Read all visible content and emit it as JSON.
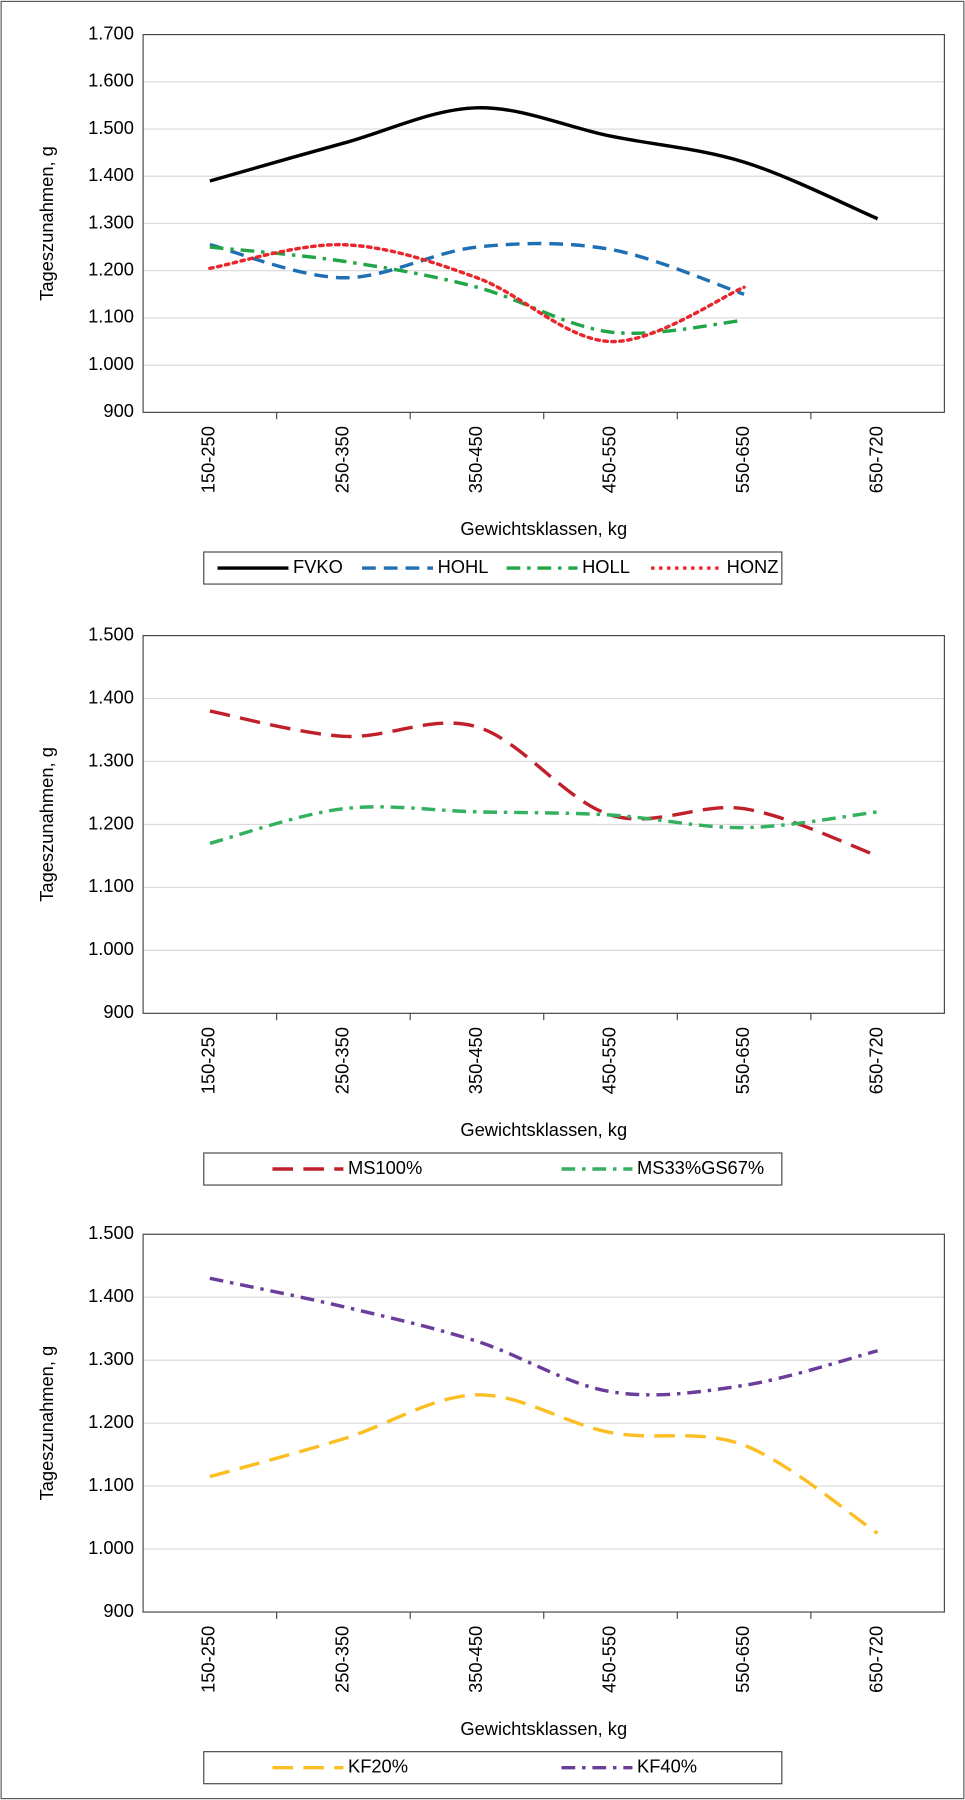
{
  "chart_data": [
    {
      "type": "line",
      "y_label": "Tageszunahmen, g",
      "x_label": "Gewichtsklassen, kg",
      "categories": [
        "150-250",
        "250-350",
        "350-450",
        "450-550",
        "550-650",
        "650-720"
      ],
      "ylim": [
        900,
        1700
      ],
      "yticks": [
        900,
        {
          "value": 1000,
          "label": "1.000"
        },
        {
          "value": 1100,
          "label": "1.100"
        },
        {
          "value": 1200,
          "label": "1.200"
        },
        {
          "value": 1300,
          "label": "1.300"
        },
        {
          "value": 1400,
          "label": "1.400"
        },
        {
          "value": 1500,
          "label": "1.500"
        },
        {
          "value": 1600,
          "label": "1.600"
        },
        {
          "value": 1700,
          "label": "1.700"
        }
      ],
      "grid": true,
      "series": [
        {
          "name": "FVKO",
          "color": "#000000",
          "style": "solid",
          "values": [
            1390,
            1470,
            1545,
            1485,
            1430,
            1310
          ]
        },
        {
          "name": "HOHL",
          "color": "#1f6fb5",
          "style": "dashed",
          "values": [
            1255,
            1185,
            1250,
            1245,
            1150,
            null
          ]
        },
        {
          "name": "HOLL",
          "color": "#22a546",
          "style": "dashdot",
          "values": [
            1250,
            1220,
            1165,
            1070,
            1095,
            null
          ]
        },
        {
          "name": "HONZ",
          "color": "#e8262b",
          "style": "dotted",
          "values": [
            1205,
            1255,
            1185,
            1050,
            1165,
            null
          ]
        }
      ]
    },
    {
      "type": "line",
      "y_label": "Tageszunahmen, g",
      "x_label": "Gewichtsklassen, kg",
      "categories": [
        "150-250",
        "250-350",
        "350-450",
        "450-550",
        "550-650",
        "650-720"
      ],
      "ylim": [
        900,
        1500
      ],
      "yticks": [
        900,
        {
          "value": 1000,
          "label": "1.000"
        },
        {
          "value": 1100,
          "label": "1.100"
        },
        {
          "value": 1200,
          "label": "1.200"
        },
        {
          "value": 1300,
          "label": "1.300"
        },
        {
          "value": 1400,
          "label": "1.400"
        },
        {
          "value": 1500,
          "label": "1.500"
        }
      ],
      "grid": true,
      "series": [
        {
          "name": "MS100%",
          "color": "#c0202a",
          "style": "longdash",
          "values": [
            1380,
            1340,
            1355,
            1215,
            1225,
            1150
          ]
        },
        {
          "name": "MS33%GS67%",
          "color": "#33b060",
          "style": "dashdot",
          "values": [
            1170,
            1225,
            1220,
            1215,
            1195,
            1220
          ]
        }
      ]
    },
    {
      "type": "line",
      "y_label": "Tageszunahmen, g",
      "x_label": "Gewichtsklassen, kg",
      "categories": [
        "150-250",
        "250-350",
        "350-450",
        "450-550",
        "550-650",
        "650-720"
      ],
      "ylim": [
        900,
        1500
      ],
      "yticks": [
        900,
        {
          "value": 1000,
          "label": "1.000"
        },
        {
          "value": 1100,
          "label": "1.100"
        },
        {
          "value": 1200,
          "label": "1.200"
        },
        {
          "value": 1300,
          "label": "1.300"
        },
        {
          "value": 1400,
          "label": "1.400"
        },
        {
          "value": 1500,
          "label": "1.500"
        }
      ],
      "grid": true,
      "series": [
        {
          "name": "KF20%",
          "color": "#fbbf24",
          "style": "longdash",
          "values": [
            1115,
            1175,
            1245,
            1185,
            1165,
            1025
          ]
        },
        {
          "name": "KF40%",
          "color": "#6a3d9a",
          "style": "dashdot",
          "values": [
            1430,
            1385,
            1330,
            1250,
            1260,
            1315
          ]
        }
      ]
    }
  ]
}
